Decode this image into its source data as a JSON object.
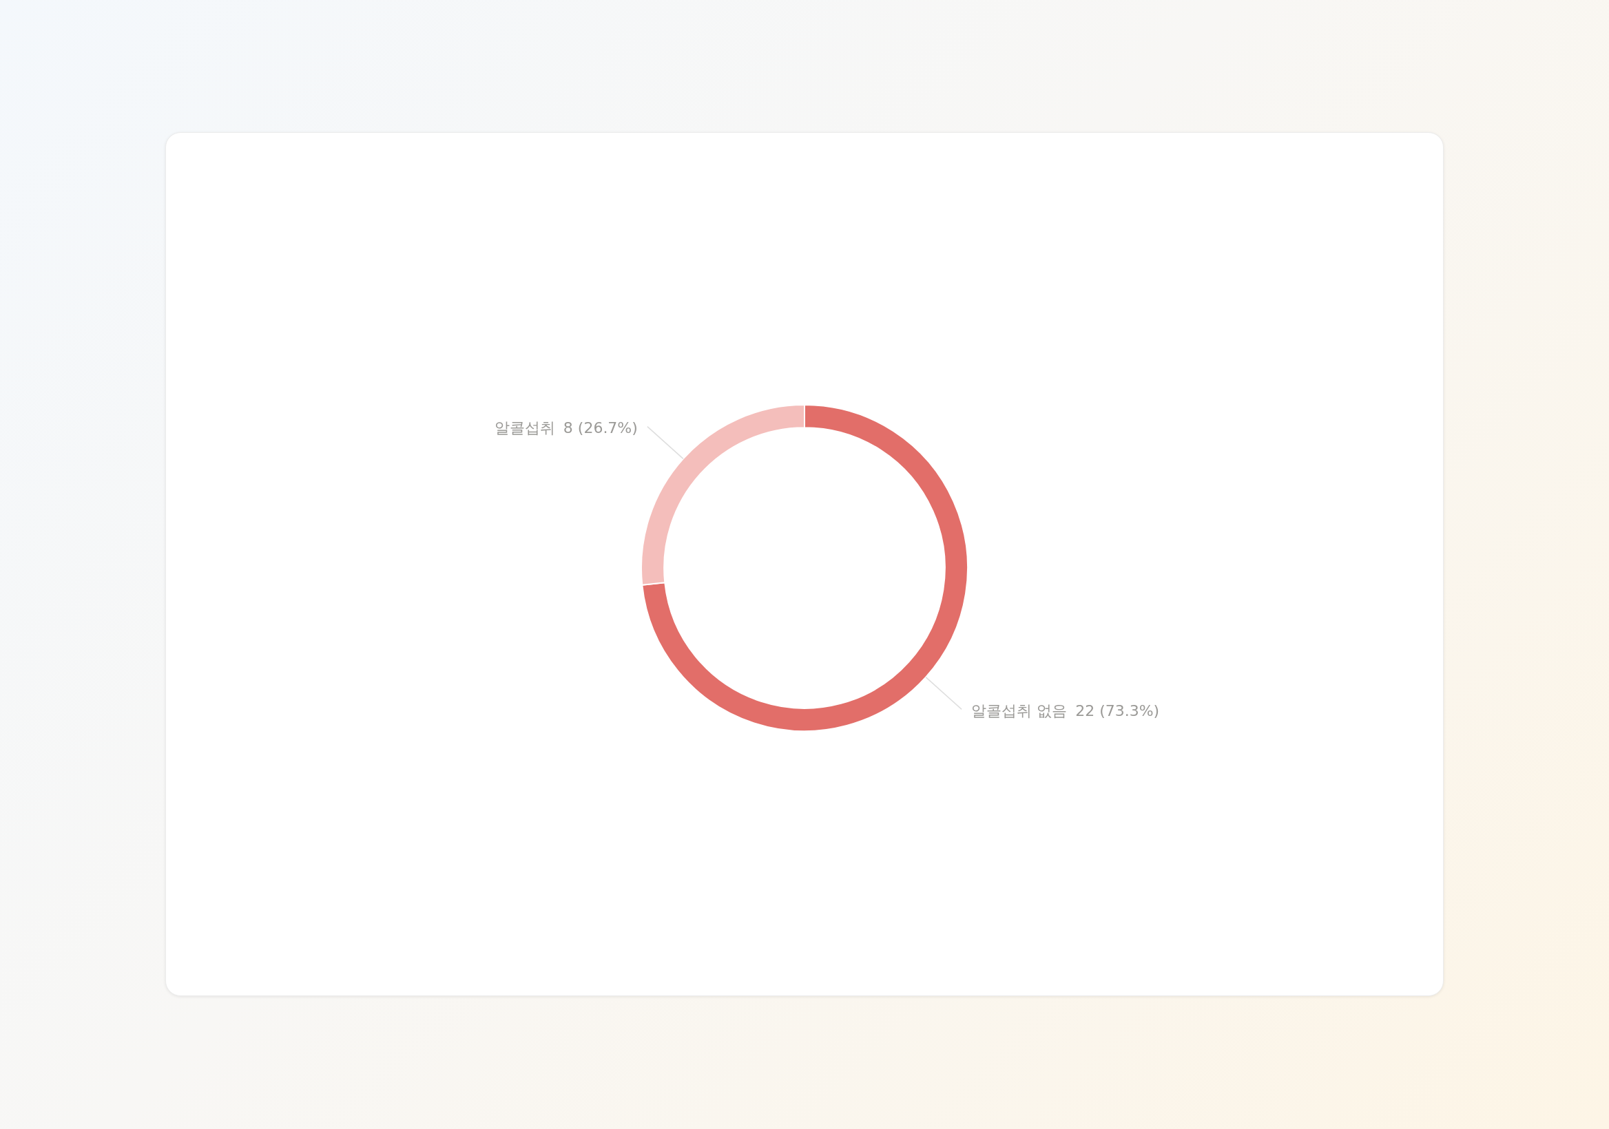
{
  "chart_data": {
    "type": "donut",
    "categories": [
      "알콜섭취 없음",
      "알콜섭취"
    ],
    "values": [
      22,
      8
    ],
    "colors": [
      "#e26e69",
      "#f4bebb"
    ],
    "value_labels": [
      "22 (73.3%)",
      "8 (26.7%)"
    ]
  }
}
